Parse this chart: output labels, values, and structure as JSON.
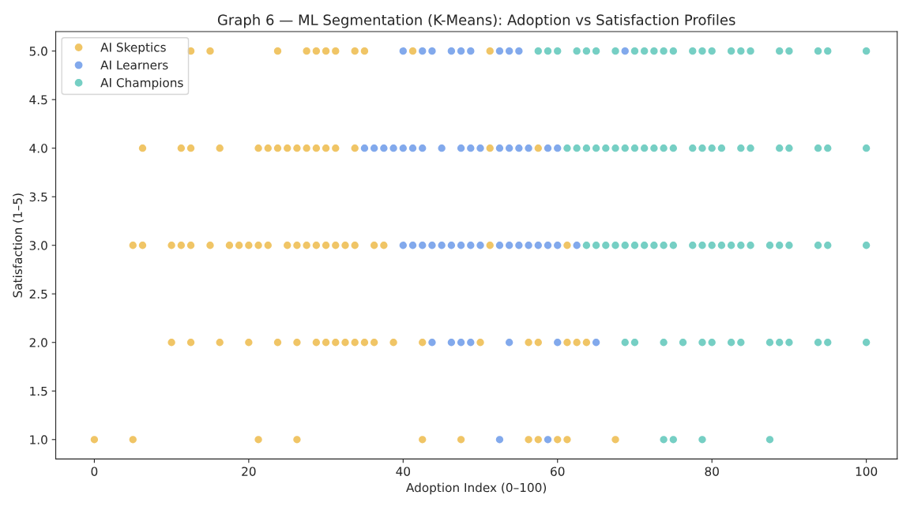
{
  "chart_data": {
    "type": "scatter",
    "title": "Graph 6 — ML Segmentation (K-Means): Adoption vs Satisfaction Profiles",
    "xlabel": "Adoption Index (0–100)",
    "ylabel": "Satisfaction (1–5)",
    "xlim": [
      -5,
      104
    ],
    "ylim": [
      0.8,
      5.2
    ],
    "xticks": [
      0,
      20,
      40,
      60,
      80,
      100
    ],
    "yticks": [
      {
        "value": 1,
        "label": "1.0"
      },
      {
        "value": 1.5,
        "label": "1.5"
      },
      {
        "value": 2,
        "label": "2.0"
      },
      {
        "value": 2.5,
        "label": "2.5"
      },
      {
        "value": 3,
        "label": "3.0"
      },
      {
        "value": 3.5,
        "label": "3.5"
      },
      {
        "value": 4,
        "label": "4.0"
      },
      {
        "value": 4.5,
        "label": "4.5"
      },
      {
        "value": 5,
        "label": "5.0"
      }
    ],
    "grid": false,
    "legend": "top left",
    "marker": "circle",
    "series": [
      {
        "name": "AI Skeptics",
        "color": "#e69f00",
        "x": [
          12.5,
          15,
          23.75,
          27.5,
          28.75,
          30,
          31.25,
          33.75,
          35,
          41.25,
          51.25,
          6.25,
          11.25,
          12.5,
          16.25,
          21.25,
          22.5,
          23.75,
          25,
          26.25,
          27.5,
          28.75,
          30,
          31.25,
          33.75,
          51.25,
          57.5,
          5,
          6.25,
          10,
          11.25,
          12.5,
          15,
          17.5,
          18.75,
          20,
          21.25,
          22.5,
          25,
          26.25,
          27.5,
          28.75,
          30,
          31.25,
          32.5,
          33.75,
          36.25,
          37.5,
          51.25,
          61.25,
          10,
          12.5,
          16.25,
          20,
          23.75,
          26.25,
          28.75,
          30,
          31.25,
          32.5,
          33.75,
          35,
          36.25,
          38.75,
          42.5,
          50,
          56.25,
          57.5,
          61.25,
          62.5,
          63.75,
          0,
          5,
          21.25,
          26.25,
          42.5,
          47.5,
          56.25,
          57.5,
          60,
          61.25,
          67.5
        ],
        "values": [
          5,
          5,
          5,
          5,
          5,
          5,
          5,
          5,
          5,
          5,
          5,
          4,
          4,
          4,
          4,
          4,
          4,
          4,
          4,
          4,
          4,
          4,
          4,
          4,
          4,
          4,
          4,
          3,
          3,
          3,
          3,
          3,
          3,
          3,
          3,
          3,
          3,
          3,
          3,
          3,
          3,
          3,
          3,
          3,
          3,
          3,
          3,
          3,
          3,
          3,
          2,
          2,
          2,
          2,
          2,
          2,
          2,
          2,
          2,
          2,
          2,
          2,
          2,
          2,
          2,
          2,
          2,
          2,
          2,
          2,
          2,
          1,
          1,
          1,
          1,
          1,
          1,
          1,
          1,
          1,
          1,
          1
        ]
      },
      {
        "name": "AI Learners",
        "color": "#2f6fe0",
        "x": [
          40,
          42.5,
          43.75,
          46.25,
          47.5,
          48.75,
          52.5,
          53.75,
          55,
          68.75,
          35,
          36.25,
          37.5,
          38.75,
          40,
          41.25,
          42.5,
          45,
          47.5,
          48.75,
          50,
          52.5,
          53.75,
          55,
          56.25,
          58.75,
          60,
          40,
          41.25,
          42.5,
          43.75,
          45,
          46.25,
          47.5,
          48.75,
          50,
          52.5,
          53.75,
          55,
          56.25,
          57.5,
          58.75,
          60,
          62.5,
          43.75,
          46.25,
          47.5,
          48.75,
          53.75,
          60,
          65,
          52.5,
          58.75
        ],
        "values": [
          5,
          5,
          5,
          5,
          5,
          5,
          5,
          5,
          5,
          5,
          4,
          4,
          4,
          4,
          4,
          4,
          4,
          4,
          4,
          4,
          4,
          4,
          4,
          4,
          4,
          4,
          4,
          3,
          3,
          3,
          3,
          3,
          3,
          3,
          3,
          3,
          3,
          3,
          3,
          3,
          3,
          3,
          3,
          3,
          2,
          2,
          2,
          2,
          2,
          2,
          2,
          1,
          1
        ]
      },
      {
        "name": "AI Champions",
        "color": "#1aaf9c",
        "x": [
          57.5,
          58.75,
          60,
          62.5,
          63.75,
          65,
          67.5,
          70,
          71.25,
          72.5,
          73.75,
          75,
          77.5,
          78.75,
          80,
          82.5,
          83.75,
          85,
          88.75,
          90,
          93.75,
          95,
          100,
          61.25,
          62.5,
          63.75,
          65,
          66.25,
          67.5,
          68.75,
          70,
          71.25,
          72.5,
          73.75,
          75,
          77.5,
          78.75,
          80,
          81.25,
          83.75,
          85,
          88.75,
          90,
          93.75,
          95,
          100,
          63.75,
          65,
          66.25,
          67.5,
          68.75,
          70,
          71.25,
          72.5,
          73.75,
          75,
          77.5,
          78.75,
          80,
          81.25,
          82.5,
          83.75,
          85,
          87.5,
          88.75,
          90,
          93.75,
          95,
          100,
          68.75,
          70,
          73.75,
          76.25,
          78.75,
          80,
          82.5,
          83.75,
          87.5,
          88.75,
          90,
          93.75,
          95,
          100,
          73.75,
          75,
          78.75,
          87.5
        ],
        "values": [
          5,
          5,
          5,
          5,
          5,
          5,
          5,
          5,
          5,
          5,
          5,
          5,
          5,
          5,
          5,
          5,
          5,
          5,
          5,
          5,
          5,
          5,
          5,
          4,
          4,
          4,
          4,
          4,
          4,
          4,
          4,
          4,
          4,
          4,
          4,
          4,
          4,
          4,
          4,
          4,
          4,
          4,
          4,
          4,
          4,
          4,
          3,
          3,
          3,
          3,
          3,
          3,
          3,
          3,
          3,
          3,
          3,
          3,
          3,
          3,
          3,
          3,
          3,
          3,
          3,
          3,
          3,
          3,
          3,
          2,
          2,
          2,
          2,
          2,
          2,
          2,
          2,
          2,
          2,
          2,
          2,
          2,
          2,
          1,
          1,
          1,
          1
        ]
      }
    ]
  }
}
